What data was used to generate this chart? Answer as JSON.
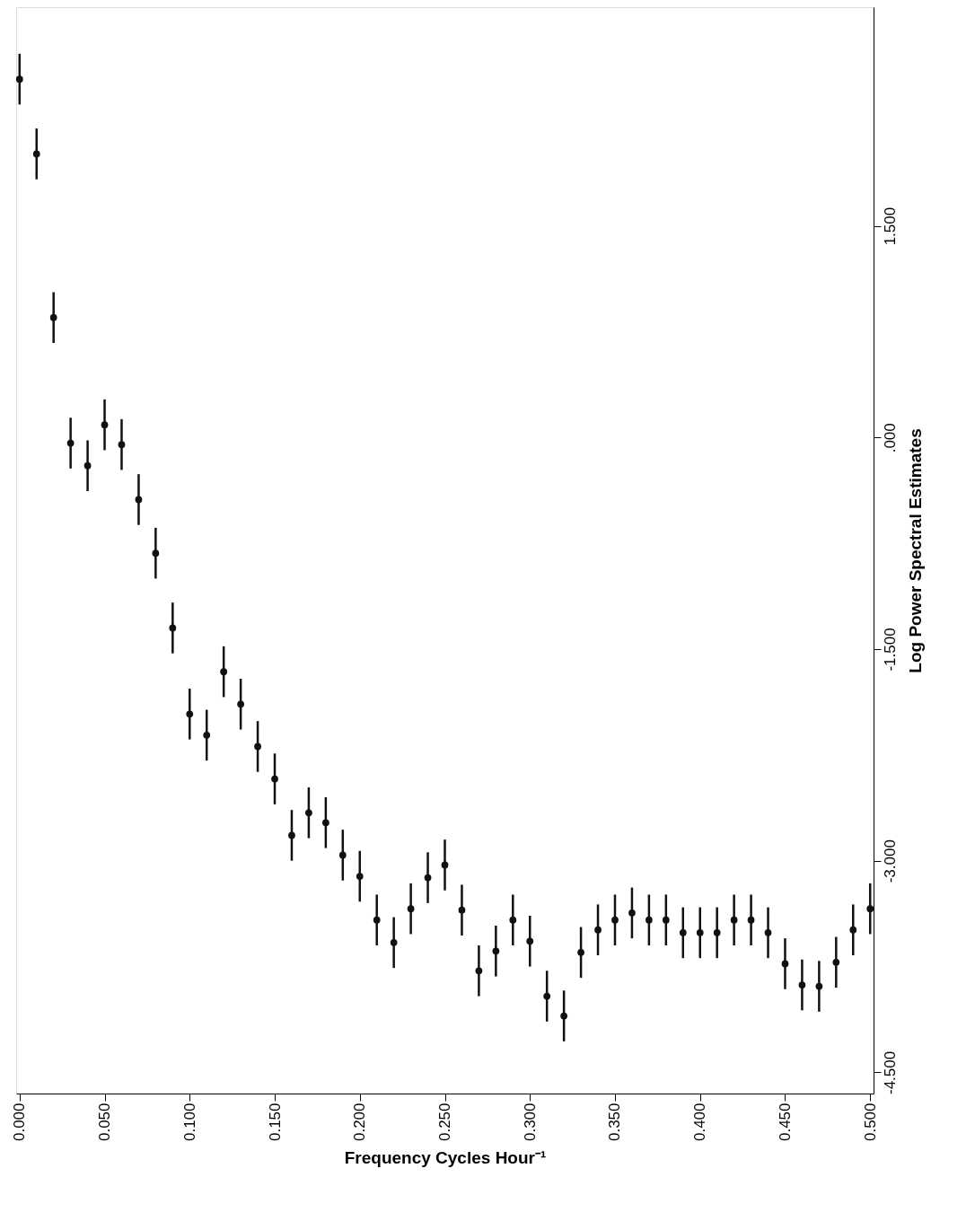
{
  "chart_data": {
    "type": "scatter",
    "xlabel": "Frequency Cycles Hour⁻¹",
    "ylabel": "Log Power Spectral Estimates",
    "x": [
      0.0,
      0.01,
      0.02,
      0.03,
      0.04,
      0.05,
      0.06,
      0.07,
      0.08,
      0.09,
      0.1,
      0.11,
      0.12,
      0.13,
      0.14,
      0.15,
      0.16,
      0.17,
      0.18,
      0.19,
      0.2,
      0.21,
      0.22,
      0.23,
      0.24,
      0.25,
      0.26,
      0.27,
      0.28,
      0.29,
      0.3,
      0.31,
      0.32,
      0.33,
      0.34,
      0.35,
      0.36,
      0.37,
      0.38,
      0.39,
      0.4,
      0.41,
      0.42,
      0.43,
      0.44,
      0.45,
      0.46,
      0.47,
      0.48,
      0.49,
      0.5
    ],
    "series": [
      {
        "color": "#111111",
        "values": [
          2.54,
          2.01,
          0.85,
          -0.04,
          -0.2,
          0.09,
          -0.05,
          -0.44,
          -0.82,
          -1.35,
          -1.96,
          -2.11,
          -1.66,
          -1.89,
          -2.19,
          -2.42,
          -2.82,
          -2.66,
          -2.73,
          -2.96,
          -3.11,
          -3.42,
          -3.58,
          -3.34,
          -3.12,
          -3.03,
          -3.35,
          -3.78,
          -3.64,
          -3.42,
          -3.57,
          -3.96,
          -4.1,
          -3.65,
          -3.49,
          -3.42,
          -3.37,
          -3.42,
          -3.42,
          -3.51,
          -3.51,
          -3.51,
          -3.42,
          -3.42,
          -3.51,
          -3.73,
          -3.88,
          -3.89,
          -3.72,
          -3.49,
          -3.34
        ],
        "errors": [
          0.18,
          0.18,
          0.18,
          0.18,
          0.18,
          0.18,
          0.18,
          0.18,
          0.18,
          0.18,
          0.18,
          0.18,
          0.18,
          0.18,
          0.18,
          0.18,
          0.18,
          0.18,
          0.18,
          0.18,
          0.18,
          0.18,
          0.18,
          0.18,
          0.18,
          0.18,
          0.18,
          0.18,
          0.18,
          0.18,
          0.18,
          0.18,
          0.18,
          0.18,
          0.18,
          0.18,
          0.18,
          0.18,
          0.18,
          0.18,
          0.18,
          0.18,
          0.18,
          0.18,
          0.18,
          0.18,
          0.18,
          0.18,
          0.18,
          0.18,
          0.18
        ]
      }
    ],
    "xlim": [
      -0.002,
      0.502
    ],
    "ylim": [
      -4.65,
      3.05
    ],
    "xticks": [
      {
        "value": 0,
        "label": "0.000"
      },
      {
        "value": 0.05,
        "label": "0.050"
      },
      {
        "value": 0.1,
        "label": "0.100"
      },
      {
        "value": 0.15,
        "label": "0.150"
      },
      {
        "value": 0.2,
        "label": "0.200"
      },
      {
        "value": 0.25,
        "label": "0.250"
      },
      {
        "value": 0.3,
        "label": "0.300"
      },
      {
        "value": 0.35,
        "label": "0.350"
      },
      {
        "value": 0.4,
        "label": "0.400"
      },
      {
        "value": 0.45,
        "label": "0.450"
      },
      {
        "value": 0.5,
        "label": "0.500"
      }
    ],
    "yticks": [
      {
        "value": -4.5,
        "label": "-4.500"
      },
      {
        "value": -3,
        "label": "-3.000"
      },
      {
        "value": -1.5,
        "label": "-1.500"
      },
      {
        "value": 0,
        "label": ".000"
      },
      {
        "value": 1.5,
        "label": "1.500"
      }
    ],
    "marker": "circle",
    "grid": false
  }
}
